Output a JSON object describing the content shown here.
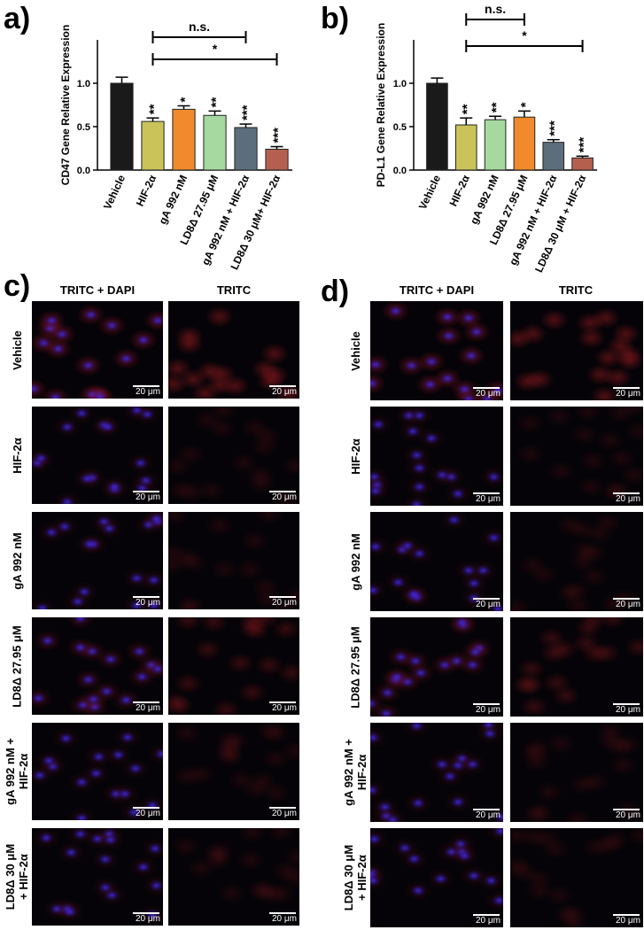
{
  "panels": {
    "a": "a)",
    "b": "b)",
    "c": "c)",
    "d": "d)"
  },
  "chart_data": [
    {
      "type": "bar",
      "ylabel": "CD47 Gene Relative Expression",
      "xlabel": "",
      "ylim": [
        0,
        1.5
      ],
      "yticks": [
        "0.0",
        "0.5",
        "1.0"
      ],
      "categories": [
        "Vehicle",
        "HIF-2α",
        "gA 992 nM",
        "LD8Δ 27.95 μM",
        "gA 992 nM + HIF-2α",
        "LD8Δ 30 μM+ HIF-2α"
      ],
      "values": [
        1.0,
        0.56,
        0.7,
        0.63,
        0.49,
        0.24
      ],
      "errors": [
        0.07,
        0.04,
        0.04,
        0.05,
        0.04,
        0.03
      ],
      "significance": [
        "",
        "**",
        "*",
        "**",
        "***",
        "***"
      ],
      "colors": [
        "#1a1a1a",
        "#c9c35a",
        "#f08a2c",
        "#a6d9a0",
        "#5c6e7c",
        "#b5604e"
      ],
      "brackets": [
        {
          "from": 1,
          "to": 4,
          "label": "n.s."
        },
        {
          "from": 1,
          "to": 5,
          "label": "*"
        }
      ]
    },
    {
      "type": "bar",
      "ylabel": "PD-L1 Gene Relative Expression",
      "xlabel": "",
      "ylim": [
        0,
        1.5
      ],
      "yticks": [
        "0.0",
        "0.5",
        "1.0"
      ],
      "categories": [
        "Vehicle",
        "HIF-2α",
        "gA 992 nM",
        "LD8Δ 27.95 μM",
        "gA 992 nM + HIF-2α",
        "LD8Δ 30 μM + HIF-2α"
      ],
      "values": [
        1.0,
        0.52,
        0.58,
        0.61,
        0.32,
        0.14
      ],
      "errors": [
        0.06,
        0.08,
        0.04,
        0.07,
        0.03,
        0.02
      ],
      "significance": [
        "",
        "**",
        "**",
        "*",
        "***",
        "***"
      ],
      "colors": [
        "#1a1a1a",
        "#c9c35a",
        "#a6d9a0",
        "#f08a2c",
        "#5c6e7c",
        "#b5604e"
      ],
      "brackets": [
        {
          "from": 1,
          "to": 3,
          "label": "n.s."
        },
        {
          "from": 1,
          "to": 5,
          "label": "*"
        }
      ]
    }
  ],
  "microscopy": {
    "column_headers": [
      "TRITC + DAPI",
      "TRITC"
    ],
    "scale_label": "20 μm",
    "rows_c": [
      "Vehicle",
      "HIF-2α",
      "gA 992 nM",
      "LD8Δ 27.95 μM",
      "gA 992 nM +\nHIF-2α",
      "LD8Δ 30 μM\n+ HIF-2α"
    ],
    "rows_d": [
      "Vehicle",
      "HIF-2α",
      "gA 992 nM",
      "LD8Δ 27.95 μM",
      "gA 992 nM +\nHIF-2α",
      "LD8Δ 30 μM\n+ HIF-2α"
    ]
  }
}
